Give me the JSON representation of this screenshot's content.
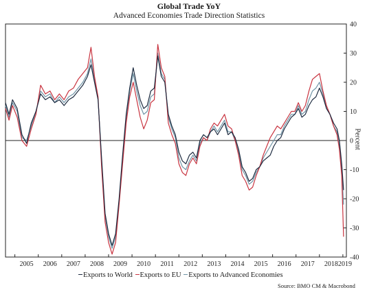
{
  "chart_data": {
    "type": "line",
    "title": "Global Trade YoY",
    "subtitle": "Advanced Economies Trade Direction Statistics",
    "ylabel": "Percent",
    "ylim": [
      -40,
      40
    ],
    "yticks": [
      40,
      30,
      20,
      10,
      0,
      -10,
      -20,
      -30,
      -40
    ],
    "xlim": [
      2004.6,
      2019.15
    ],
    "xtick_labels": [
      "2005",
      "2006",
      "2007",
      "2008",
      "2009",
      "2010",
      "2011",
      "2012",
      "2013",
      "2014",
      "2015",
      "2016",
      "2017",
      "2018",
      "2019"
    ],
    "grid": false,
    "legend_position": "bottom",
    "source": "Source: BMO CM & Macrobond",
    "series": [
      {
        "name": "Exports to World",
        "color": "#1c2a3f",
        "points": [
          [
            2004.6,
            13
          ],
          [
            2004.75,
            9
          ],
          [
            2004.9,
            14
          ],
          [
            2005.1,
            11
          ],
          [
            2005.3,
            2
          ],
          [
            2005.5,
            -1
          ],
          [
            2005.7,
            6
          ],
          [
            2005.9,
            10
          ],
          [
            2006.1,
            16
          ],
          [
            2006.3,
            14
          ],
          [
            2006.5,
            15
          ],
          [
            2006.7,
            13
          ],
          [
            2006.9,
            14
          ],
          [
            2007.1,
            12
          ],
          [
            2007.3,
            14
          ],
          [
            2007.5,
            15
          ],
          [
            2007.7,
            17
          ],
          [
            2007.9,
            19
          ],
          [
            2008.1,
            22
          ],
          [
            2008.25,
            26
          ],
          [
            2008.4,
            20
          ],
          [
            2008.55,
            14
          ],
          [
            2008.7,
            -6
          ],
          [
            2008.85,
            -25
          ],
          [
            2009.0,
            -32
          ],
          [
            2009.15,
            -36
          ],
          [
            2009.3,
            -32
          ],
          [
            2009.45,
            -20
          ],
          [
            2009.6,
            -5
          ],
          [
            2009.75,
            9
          ],
          [
            2009.9,
            18
          ],
          [
            2010.05,
            25
          ],
          [
            2010.2,
            19
          ],
          [
            2010.35,
            14
          ],
          [
            2010.5,
            11
          ],
          [
            2010.65,
            12
          ],
          [
            2010.8,
            17
          ],
          [
            2010.95,
            18
          ],
          [
            2011.1,
            29
          ],
          [
            2011.25,
            22
          ],
          [
            2011.4,
            20
          ],
          [
            2011.55,
            9
          ],
          [
            2011.7,
            5
          ],
          [
            2011.85,
            2
          ],
          [
            2012.0,
            -4
          ],
          [
            2012.15,
            -7
          ],
          [
            2012.3,
            -8
          ],
          [
            2012.45,
            -5
          ],
          [
            2012.6,
            -4
          ],
          [
            2012.75,
            -6
          ],
          [
            2012.9,
            0
          ],
          [
            2013.05,
            2
          ],
          [
            2013.2,
            1
          ],
          [
            2013.35,
            3
          ],
          [
            2013.5,
            4
          ],
          [
            2013.65,
            2
          ],
          [
            2013.8,
            4
          ],
          [
            2013.95,
            6
          ],
          [
            2014.1,
            2
          ],
          [
            2014.25,
            3
          ],
          [
            2014.4,
            1
          ],
          [
            2014.55,
            -3
          ],
          [
            2014.7,
            -9
          ],
          [
            2014.85,
            -11
          ],
          [
            2015.0,
            -14
          ],
          [
            2015.15,
            -13
          ],
          [
            2015.3,
            -10
          ],
          [
            2015.45,
            -9
          ],
          [
            2015.6,
            -7
          ],
          [
            2015.75,
            -6
          ],
          [
            2015.9,
            -5
          ],
          [
            2016.05,
            -2
          ],
          [
            2016.2,
            0
          ],
          [
            2016.35,
            1
          ],
          [
            2016.5,
            4
          ],
          [
            2016.65,
            6
          ],
          [
            2016.8,
            8
          ],
          [
            2016.95,
            9
          ],
          [
            2017.1,
            11
          ],
          [
            2017.25,
            8
          ],
          [
            2017.4,
            9
          ],
          [
            2017.55,
            12
          ],
          [
            2017.7,
            14
          ],
          [
            2017.85,
            15
          ],
          [
            2018.0,
            18
          ],
          [
            2018.15,
            15
          ],
          [
            2018.3,
            11
          ],
          [
            2018.45,
            9
          ],
          [
            2018.6,
            6
          ],
          [
            2018.75,
            4
          ],
          [
            2018.85,
            0
          ],
          [
            2018.95,
            -8
          ],
          [
            2019.03,
            -17
          ]
        ]
      },
      {
        "name": "Exports to EU",
        "color": "#c8333f",
        "points": [
          [
            2004.6,
            11
          ],
          [
            2004.75,
            7
          ],
          [
            2004.9,
            12
          ],
          [
            2005.1,
            8
          ],
          [
            2005.3,
            0
          ],
          [
            2005.5,
            -2
          ],
          [
            2005.7,
            4
          ],
          [
            2005.9,
            9
          ],
          [
            2006.1,
            19
          ],
          [
            2006.3,
            16
          ],
          [
            2006.5,
            17
          ],
          [
            2006.7,
            14
          ],
          [
            2006.9,
            16
          ],
          [
            2007.1,
            14
          ],
          [
            2007.3,
            17
          ],
          [
            2007.5,
            18
          ],
          [
            2007.7,
            21
          ],
          [
            2007.9,
            23
          ],
          [
            2008.1,
            25
          ],
          [
            2008.25,
            32
          ],
          [
            2008.4,
            22
          ],
          [
            2008.55,
            15
          ],
          [
            2008.7,
            -9
          ],
          [
            2008.85,
            -28
          ],
          [
            2009.0,
            -35
          ],
          [
            2009.15,
            -39
          ],
          [
            2009.3,
            -35
          ],
          [
            2009.45,
            -22
          ],
          [
            2009.6,
            -8
          ],
          [
            2009.75,
            6
          ],
          [
            2009.9,
            15
          ],
          [
            2010.05,
            20
          ],
          [
            2010.2,
            14
          ],
          [
            2010.35,
            8
          ],
          [
            2010.5,
            4
          ],
          [
            2010.65,
            7
          ],
          [
            2010.8,
            13
          ],
          [
            2010.95,
            14
          ],
          [
            2011.1,
            33
          ],
          [
            2011.25,
            25
          ],
          [
            2011.4,
            22
          ],
          [
            2011.55,
            6
          ],
          [
            2011.7,
            2
          ],
          [
            2011.85,
            -1
          ],
          [
            2012.0,
            -8
          ],
          [
            2012.15,
            -11
          ],
          [
            2012.3,
            -12
          ],
          [
            2012.45,
            -8
          ],
          [
            2012.6,
            -6
          ],
          [
            2012.75,
            -8
          ],
          [
            2012.9,
            -2
          ],
          [
            2013.05,
            1
          ],
          [
            2013.2,
            0
          ],
          [
            2013.35,
            4
          ],
          [
            2013.5,
            6
          ],
          [
            2013.65,
            5
          ],
          [
            2013.8,
            7
          ],
          [
            2013.95,
            9
          ],
          [
            2014.1,
            5
          ],
          [
            2014.25,
            4
          ],
          [
            2014.4,
            0
          ],
          [
            2014.55,
            -5
          ],
          [
            2014.7,
            -12
          ],
          [
            2014.85,
            -14
          ],
          [
            2015.0,
            -17
          ],
          [
            2015.15,
            -16
          ],
          [
            2015.3,
            -12
          ],
          [
            2015.45,
            -9
          ],
          [
            2015.6,
            -5
          ],
          [
            2015.75,
            -2
          ],
          [
            2015.9,
            1
          ],
          [
            2016.05,
            3
          ],
          [
            2016.2,
            5
          ],
          [
            2016.35,
            4
          ],
          [
            2016.5,
            6
          ],
          [
            2016.65,
            8
          ],
          [
            2016.8,
            10
          ],
          [
            2016.95,
            10
          ],
          [
            2017.1,
            13
          ],
          [
            2017.25,
            10
          ],
          [
            2017.4,
            12
          ],
          [
            2017.55,
            17
          ],
          [
            2017.7,
            21
          ],
          [
            2017.85,
            22
          ],
          [
            2018.0,
            23
          ],
          [
            2018.15,
            17
          ],
          [
            2018.3,
            12
          ],
          [
            2018.45,
            9
          ],
          [
            2018.6,
            5
          ],
          [
            2018.75,
            2
          ],
          [
            2018.85,
            -3
          ],
          [
            2018.95,
            -12
          ],
          [
            2019.03,
            -33
          ]
        ]
      },
      {
        "name": "Exports to Advanced Economies",
        "color": "#6f93a5",
        "points": [
          [
            2004.6,
            12
          ],
          [
            2004.75,
            8
          ],
          [
            2004.9,
            13
          ],
          [
            2005.1,
            10
          ],
          [
            2005.3,
            1
          ],
          [
            2005.5,
            0
          ],
          [
            2005.7,
            5
          ],
          [
            2005.9,
            10
          ],
          [
            2006.1,
            17
          ],
          [
            2006.3,
            15
          ],
          [
            2006.5,
            16
          ],
          [
            2006.7,
            13
          ],
          [
            2006.9,
            15
          ],
          [
            2007.1,
            13
          ],
          [
            2007.3,
            15
          ],
          [
            2007.5,
            16
          ],
          [
            2007.7,
            18
          ],
          [
            2007.9,
            20
          ],
          [
            2008.1,
            23
          ],
          [
            2008.25,
            28
          ],
          [
            2008.4,
            21
          ],
          [
            2008.55,
            14
          ],
          [
            2008.7,
            -7
          ],
          [
            2008.85,
            -26
          ],
          [
            2009.0,
            -33
          ],
          [
            2009.15,
            -37
          ],
          [
            2009.3,
            -33
          ],
          [
            2009.45,
            -21
          ],
          [
            2009.6,
            -6
          ],
          [
            2009.75,
            8
          ],
          [
            2009.9,
            17
          ],
          [
            2010.05,
            23
          ],
          [
            2010.2,
            17
          ],
          [
            2010.35,
            12
          ],
          [
            2010.5,
            9
          ],
          [
            2010.65,
            10
          ],
          [
            2010.8,
            15
          ],
          [
            2010.95,
            16
          ],
          [
            2011.1,
            30
          ],
          [
            2011.25,
            23
          ],
          [
            2011.4,
            21
          ],
          [
            2011.55,
            8
          ],
          [
            2011.7,
            4
          ],
          [
            2011.85,
            1
          ],
          [
            2012.0,
            -6
          ],
          [
            2012.15,
            -9
          ],
          [
            2012.3,
            -10
          ],
          [
            2012.45,
            -7
          ],
          [
            2012.6,
            -5
          ],
          [
            2012.75,
            -7
          ],
          [
            2012.9,
            -1
          ],
          [
            2013.05,
            1
          ],
          [
            2013.2,
            0
          ],
          [
            2013.35,
            3
          ],
          [
            2013.5,
            5
          ],
          [
            2013.65,
            3
          ],
          [
            2013.8,
            5
          ],
          [
            2013.95,
            7
          ],
          [
            2014.1,
            3
          ],
          [
            2014.25,
            3
          ],
          [
            2014.4,
            0
          ],
          [
            2014.55,
            -4
          ],
          [
            2014.7,
            -10
          ],
          [
            2014.85,
            -12
          ],
          [
            2015.0,
            -15
          ],
          [
            2015.15,
            -14
          ],
          [
            2015.3,
            -11
          ],
          [
            2015.45,
            -9
          ],
          [
            2015.6,
            -6
          ],
          [
            2015.75,
            -4
          ],
          [
            2015.9,
            -2
          ],
          [
            2016.05,
            0
          ],
          [
            2016.2,
            2
          ],
          [
            2016.35,
            2
          ],
          [
            2016.5,
            5
          ],
          [
            2016.65,
            7
          ],
          [
            2016.8,
            9
          ],
          [
            2016.95,
            9
          ],
          [
            2017.1,
            12
          ],
          [
            2017.25,
            9
          ],
          [
            2017.4,
            10
          ],
          [
            2017.55,
            14
          ],
          [
            2017.7,
            17
          ],
          [
            2017.85,
            18
          ],
          [
            2018.0,
            20
          ],
          [
            2018.15,
            16
          ],
          [
            2018.3,
            11
          ],
          [
            2018.45,
            9
          ],
          [
            2018.6,
            5
          ],
          [
            2018.75,
            3
          ],
          [
            2018.85,
            -2
          ],
          [
            2018.95,
            -10
          ],
          [
            2019.03,
            -22
          ]
        ]
      }
    ]
  }
}
